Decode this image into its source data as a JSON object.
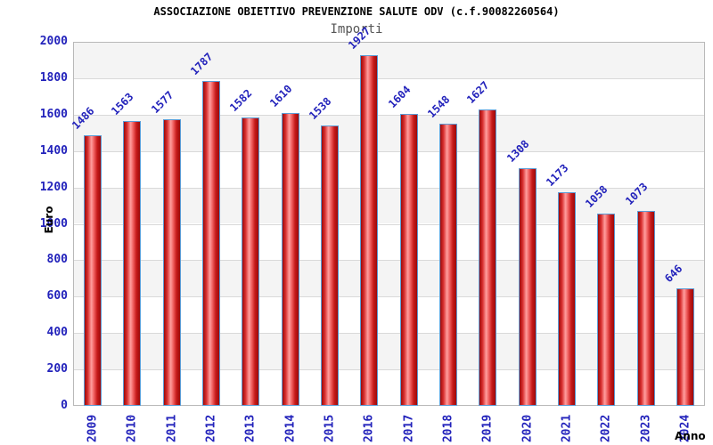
{
  "chart_data": {
    "type": "bar",
    "title": "ASSOCIAZIONE OBIETTIVO PREVENZIONE SALUTE ODV (c.f.90082260564)",
    "subtitle": "Importi",
    "xlabel": "Anno",
    "ylabel": "Euro",
    "categories": [
      "2009",
      "2010",
      "2011",
      "2012",
      "2013",
      "2014",
      "2015",
      "2016",
      "2017",
      "2018",
      "2019",
      "2020",
      "2021",
      "2022",
      "2023",
      "2024"
    ],
    "values": [
      1486,
      1563,
      1577,
      1787,
      1582,
      1610,
      1538,
      1927,
      1604,
      1548,
      1627,
      1308,
      1173,
      1058,
      1073,
      646
    ],
    "ylim": [
      0,
      2000
    ],
    "ytick_step": 200,
    "grid": "horizontal-bands-alternating",
    "legend": "none",
    "colors": {
      "bar_border": "#5b9bd5",
      "bar_dark": "#9c0a0a",
      "bar_light": "#ff9f9f",
      "tick_label_blue": "#2222bb",
      "band_gray": "#f4f4f4",
      "gridline_gray": "#d9d9d9",
      "plot_border_gray": "#b9b9b9",
      "subtitle_gray": "#555555",
      "axis_title_black": "#000000"
    }
  }
}
